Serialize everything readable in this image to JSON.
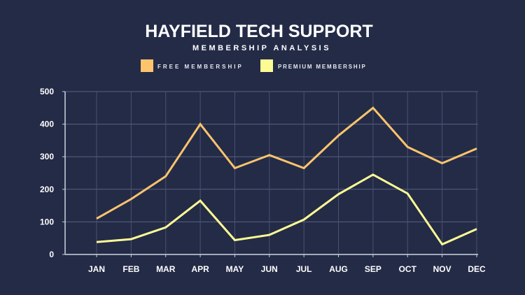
{
  "chart_data": {
    "type": "line",
    "title": "HAYFIELD TECH SUPPORT",
    "subtitle": "MEMBERSHIP ANALYSIS",
    "xlabel": "",
    "ylabel": "",
    "categories": [
      "JAN",
      "FEB",
      "MAR",
      "APR",
      "MAY",
      "JUN",
      "JUL",
      "AUG",
      "SEP",
      "OCT",
      "NOV",
      "DEC"
    ],
    "yticks": [
      0,
      100,
      200,
      300,
      400,
      500
    ],
    "ylim": [
      0,
      500
    ],
    "grid": true,
    "legend_position": "top-center",
    "series": [
      {
        "name": "FREE MEMBERSHIP",
        "color": "#fdc46c",
        "values": [
          110,
          170,
          240,
          400,
          265,
          305,
          265,
          365,
          450,
          330,
          280,
          325
        ]
      },
      {
        "name": "PREMIUM MEMBERSHIP",
        "color": "#fdfa94",
        "values": [
          38,
          47,
          83,
          165,
          44,
          60,
          107,
          185,
          245,
          187,
          31,
          78
        ]
      }
    ]
  }
}
